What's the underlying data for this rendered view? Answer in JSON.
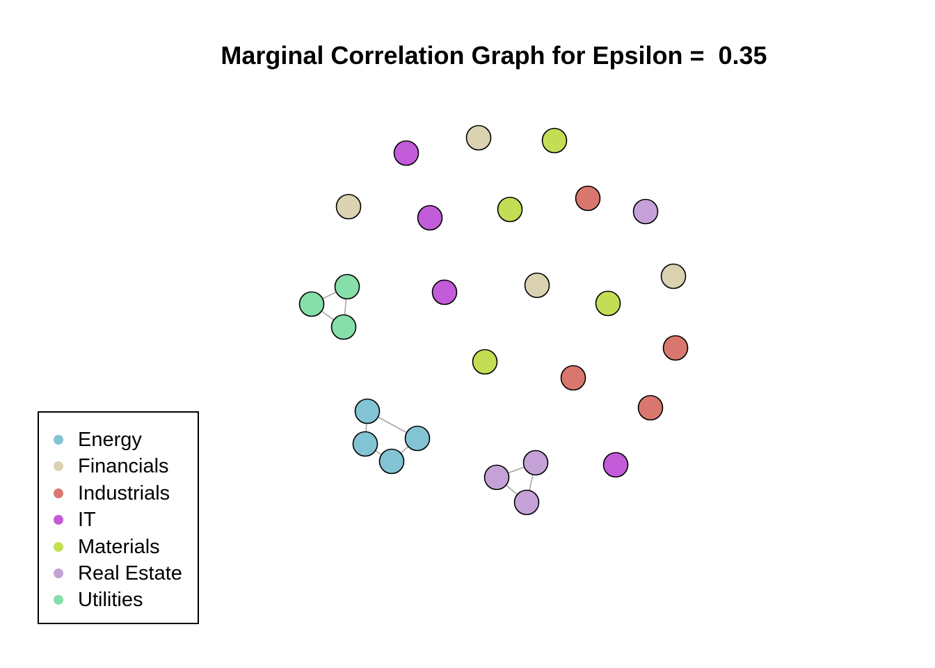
{
  "title": "Marginal Correlation Graph for Epsilon =  0.35",
  "legend": {
    "items": [
      {
        "label": "Energy",
        "color": "#82C4D3"
      },
      {
        "label": "Financials",
        "color": "#DAD2B0"
      },
      {
        "label": "Industrials",
        "color": "#D9776E"
      },
      {
        "label": "IT",
        "color": "#C35CD8"
      },
      {
        "label": "Materials",
        "color": "#C3DE55"
      },
      {
        "label": "Real Estate",
        "color": "#C4A2D8"
      },
      {
        "label": "Utilities",
        "color": "#86DEA9"
      }
    ]
  },
  "chart_data": {
    "type": "network",
    "epsilon": 0.35,
    "node_stroke": "#000000",
    "edge_color": "#A6A6A6",
    "nodes": [
      {
        "id": "fin1",
        "sector": "Financials"
      },
      {
        "id": "mat1",
        "sector": "Materials"
      },
      {
        "id": "it1",
        "sector": "IT"
      },
      {
        "id": "fin2",
        "sector": "Financials"
      },
      {
        "id": "it2",
        "sector": "IT"
      },
      {
        "id": "mat2",
        "sector": "Materials"
      },
      {
        "id": "ind1",
        "sector": "Industrials"
      },
      {
        "id": "re1",
        "sector": "Real Estate"
      },
      {
        "id": "util1",
        "sector": "Utilities"
      },
      {
        "id": "util2",
        "sector": "Utilities"
      },
      {
        "id": "util3",
        "sector": "Utilities"
      },
      {
        "id": "it3",
        "sector": "IT"
      },
      {
        "id": "fin3",
        "sector": "Financials"
      },
      {
        "id": "fin4",
        "sector": "Financials"
      },
      {
        "id": "mat3",
        "sector": "Materials"
      },
      {
        "id": "ind2",
        "sector": "Industrials"
      },
      {
        "id": "mat4",
        "sector": "Materials"
      },
      {
        "id": "ind3",
        "sector": "Industrials"
      },
      {
        "id": "ind4",
        "sector": "Industrials"
      },
      {
        "id": "en1",
        "sector": "Energy"
      },
      {
        "id": "en2",
        "sector": "Energy"
      },
      {
        "id": "en3",
        "sector": "Energy"
      },
      {
        "id": "en4",
        "sector": "Energy"
      },
      {
        "id": "re2",
        "sector": "Real Estate"
      },
      {
        "id": "re3",
        "sector": "Real Estate"
      },
      {
        "id": "re4",
        "sector": "Real Estate"
      },
      {
        "id": "it4",
        "sector": "IT"
      }
    ],
    "edges": [
      [
        "util1",
        "util2"
      ],
      [
        "util1",
        "util3"
      ],
      [
        "util2",
        "util3"
      ],
      [
        "en1",
        "en2"
      ],
      [
        "en1",
        "en4"
      ],
      [
        "en2",
        "en3"
      ],
      [
        "en3",
        "en4"
      ],
      [
        "re2",
        "re3"
      ],
      [
        "re2",
        "re4"
      ],
      [
        "re3",
        "re4"
      ]
    ]
  }
}
